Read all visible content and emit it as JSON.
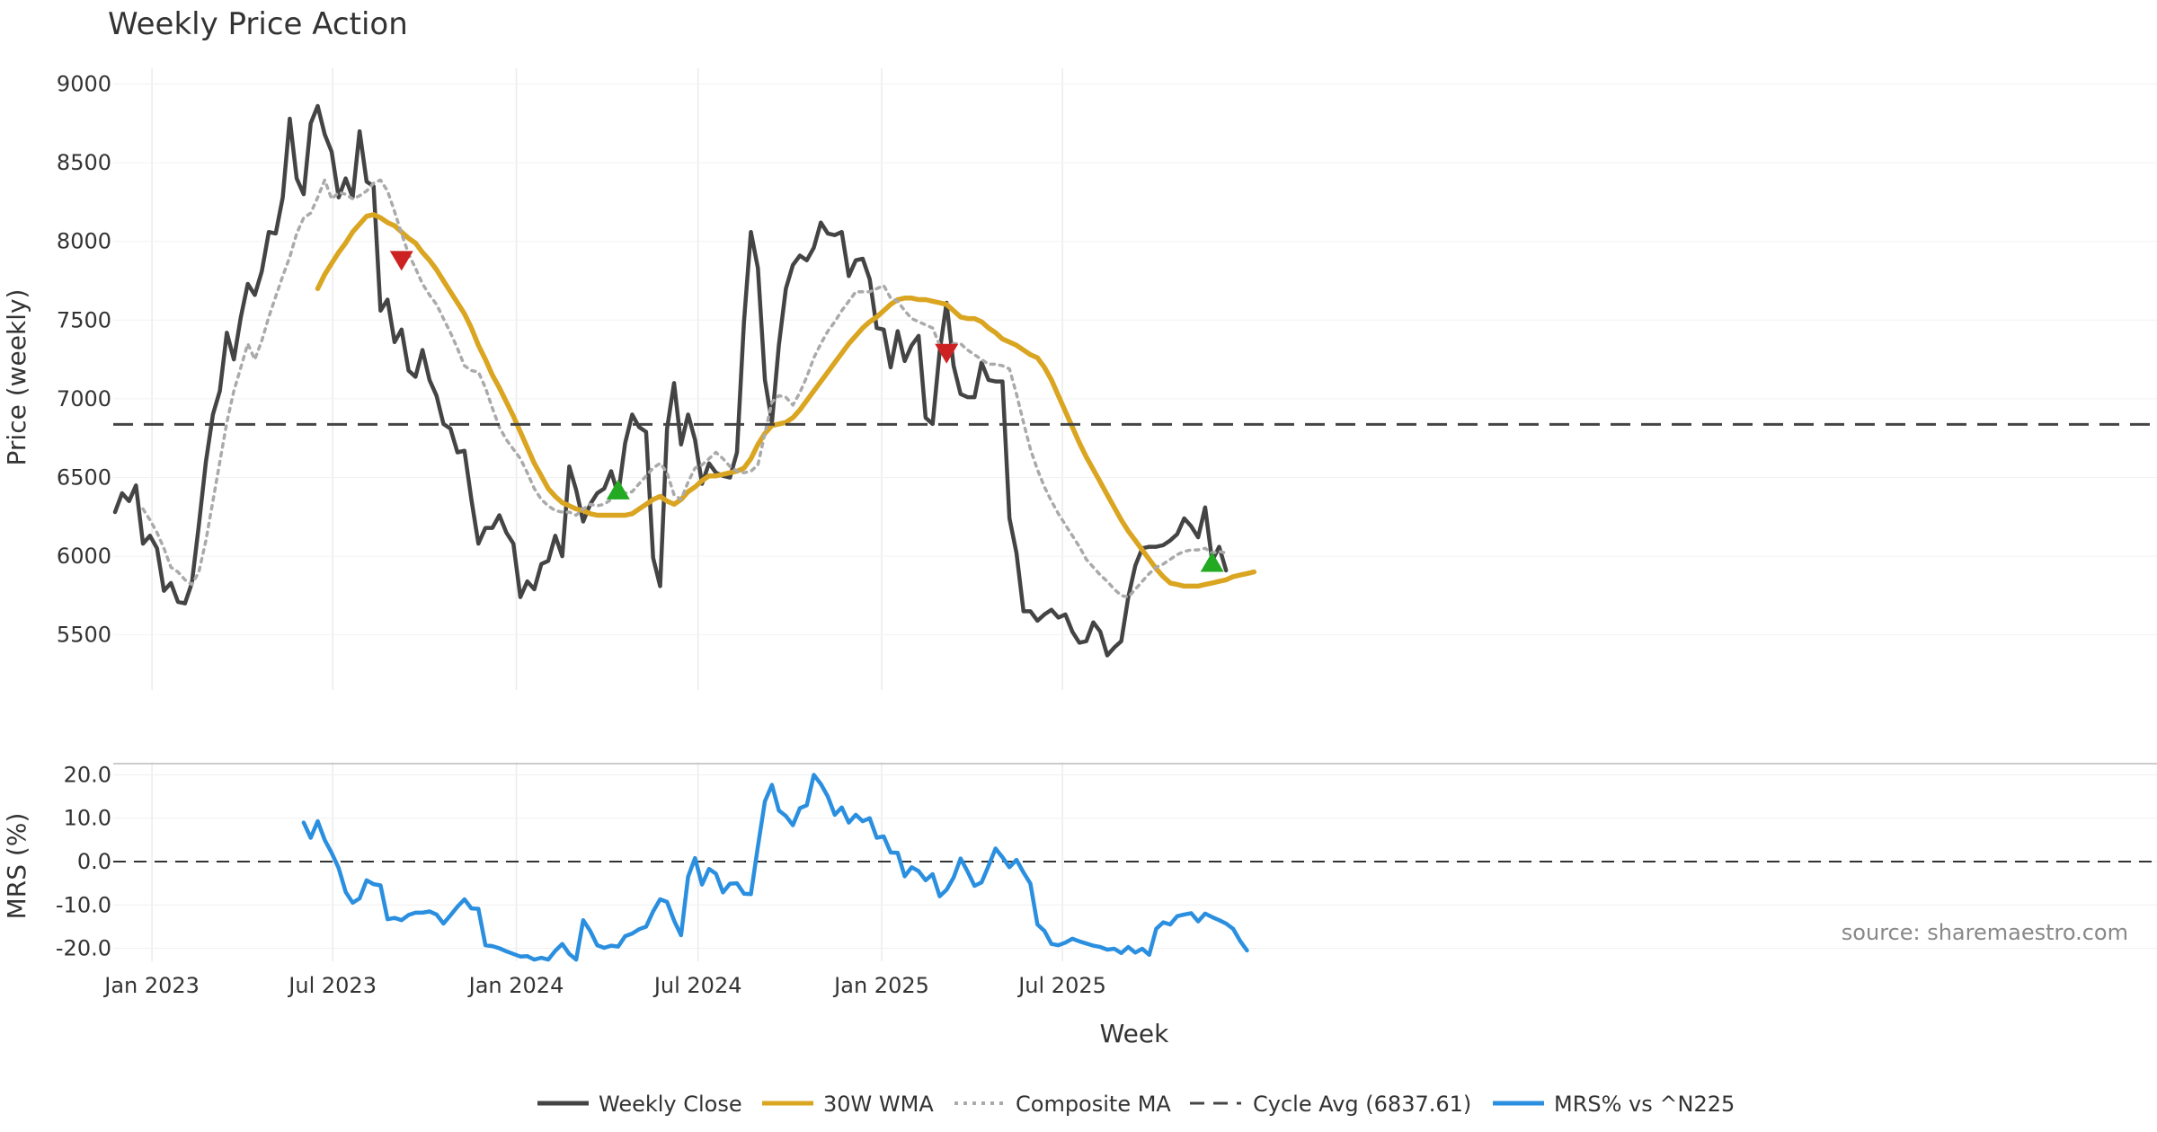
{
  "chart_data": {
    "type": "line",
    "title": "Weekly Price Action",
    "xlabel": "Week",
    "x_start": "2022-11-25",
    "x_interval": "weekly",
    "x_tick_labels": [
      "Jan 2023",
      "Jul 2023",
      "Jan 2024",
      "Jul 2024",
      "Jan 2025",
      "Jul 2025"
    ],
    "grid": true,
    "legend_position": "bottom-center",
    "source": "source: sharemaestro.com",
    "price_panel": {
      "ylabel": "Price (weekly)",
      "ylim": [
        5150,
        9100
      ],
      "y_ticks": [
        5500,
        6000,
        6500,
        7000,
        7500,
        8000,
        8500,
        9000
      ],
      "series": [
        {
          "name": "Weekly Close",
          "color": "#444444",
          "style": "solid",
          "values": [
            6280,
            6400,
            6350,
            6450,
            6080,
            6130,
            6050,
            5780,
            5830,
            5710,
            5700,
            5830,
            6200,
            6600,
            6900,
            7050,
            7420,
            7250,
            7520,
            7730,
            7660,
            7810,
            8060,
            8050,
            8280,
            8780,
            8400,
            8300,
            8750,
            8860,
            8680,
            8570,
            8280,
            8400,
            8280,
            8700,
            8380,
            8350,
            7560,
            7630,
            7360,
            7440,
            7180,
            7140,
            7310,
            7120,
            7020,
            6840,
            6810,
            6660,
            6670,
            6360,
            6080,
            6180,
            6180,
            6260,
            6150,
            6080,
            5740,
            5840,
            5790,
            5950,
            5970,
            6130,
            6000,
            6570,
            6420,
            6220,
            6330,
            6400,
            6430,
            6540,
            6390,
            6720,
            6900,
            6820,
            6790,
            5990,
            5810,
            6810,
            7100,
            6710,
            6900,
            6740,
            6460,
            6590,
            6530,
            6510,
            6500,
            6660,
            7490,
            8060,
            7830,
            7120,
            6850,
            7340,
            7700,
            7850,
            7910,
            7880,
            7960,
            8120,
            8050,
            8040,
            8060,
            7780,
            7880,
            7890,
            7760,
            7450,
            7440,
            7200,
            7430,
            7240,
            7340,
            7400,
            6880,
            6840,
            7300,
            7610,
            7210,
            7030,
            7010,
            7010,
            7230,
            7120,
            7110,
            7110,
            6240,
            6020,
            5650,
            5650,
            5590,
            5630,
            5660,
            5610,
            5630,
            5520,
            5450,
            5460,
            5580,
            5520,
            5370,
            5420,
            5460,
            5740,
            5940,
            6050,
            6060,
            6060,
            6070,
            6100,
            6140,
            6240,
            6190,
            6120,
            6310,
            5970,
            6060,
            5910
          ]
        },
        {
          "name": "30W WMA",
          "color": "#DAA520",
          "style": "solid",
          "start_index": 29,
          "values": [
            7700,
            7790,
            7860,
            7930,
            7990,
            8060,
            8110,
            8160,
            8170,
            8150,
            8120,
            8100,
            8060,
            8020,
            7990,
            7930,
            7880,
            7820,
            7750,
            7680,
            7610,
            7540,
            7450,
            7340,
            7250,
            7150,
            7070,
            6980,
            6890,
            6790,
            6690,
            6590,
            6510,
            6430,
            6380,
            6340,
            6320,
            6300,
            6290,
            6270,
            6260,
            6260,
            6260,
            6260,
            6260,
            6270,
            6300,
            6330,
            6360,
            6380,
            6350,
            6330,
            6360,
            6410,
            6440,
            6480,
            6510,
            6510,
            6520,
            6530,
            6540,
            6560,
            6620,
            6710,
            6780,
            6830,
            6840,
            6850,
            6880,
            6930,
            6990,
            7050,
            7110,
            7170,
            7230,
            7290,
            7350,
            7400,
            7450,
            7490,
            7520,
            7560,
            7600,
            7630,
            7640,
            7640,
            7630,
            7630,
            7620,
            7610,
            7600,
            7560,
            7520,
            7510,
            7510,
            7490,
            7450,
            7420,
            7380,
            7360,
            7340,
            7310,
            7280,
            7260,
            7200,
            7120,
            7020,
            6920,
            6820,
            6720,
            6630,
            6550,
            6470,
            6390,
            6310,
            6230,
            6160,
            6100,
            6040,
            5980,
            5920,
            5870,
            5830,
            5820,
            5810,
            5810,
            5810,
            5820,
            5830,
            5840,
            5850,
            5870,
            5880,
            5890,
            5900
          ]
        },
        {
          "name": "Composite MA",
          "color": "#AAAAAA",
          "style": "dotted",
          "start_index": 4,
          "values": [
            6300,
            6230,
            6150,
            6050,
            5930,
            5900,
            5850,
            5820,
            5900,
            6100,
            6350,
            6600,
            6850,
            7050,
            7200,
            7350,
            7250,
            7370,
            7520,
            7650,
            7780,
            7900,
            8050,
            8150,
            8180,
            8280,
            8390,
            8270,
            8310,
            8300,
            8270,
            8290,
            8320,
            8370,
            8390,
            8320,
            8190,
            8050,
            7920,
            7830,
            7730,
            7660,
            7600,
            7510,
            7420,
            7320,
            7210,
            7180,
            7170,
            7070,
            6940,
            6820,
            6740,
            6680,
            6620,
            6530,
            6430,
            6360,
            6320,
            6290,
            6280,
            6280,
            6260,
            6300,
            6330,
            6320,
            6330,
            6360,
            6380,
            6400,
            6410,
            6460,
            6510,
            6560,
            6590,
            6530,
            6390,
            6360,
            6470,
            6560,
            6580,
            6620,
            6660,
            6620,
            6570,
            6540,
            6530,
            6540,
            6580,
            6780,
            6980,
            7020,
            7010,
            6960,
            7040,
            7140,
            7260,
            7350,
            7430,
            7490,
            7560,
            7620,
            7680,
            7680,
            7680,
            7700,
            7720,
            7640,
            7620,
            7560,
            7510,
            7490,
            7470,
            7450,
            7340,
            7330,
            7350,
            7350,
            7310,
            7280,
            7250,
            7220,
            7220,
            7210,
            7190,
            7030,
            6850,
            6680,
            6550,
            6440,
            6350,
            6270,
            6200,
            6130,
            6060,
            5980,
            5930,
            5880,
            5840,
            5790,
            5750,
            5740,
            5790,
            5840,
            5890,
            5930,
            5950,
            5980,
            6010,
            6030,
            6040,
            6040,
            6050,
            6020,
            6030,
            6020
          ]
        },
        {
          "name": "Cycle Avg (6837.61)",
          "color": "#444444",
          "style": "dashed",
          "constant": 6837.61
        }
      ],
      "markers": [
        {
          "type": "sell",
          "shape": "down-triangle",
          "color": "#CC2222",
          "index": 41,
          "value": 7880
        },
        {
          "type": "buy",
          "shape": "up-triangle",
          "color": "#22AA22",
          "index": 72,
          "value": 6420
        },
        {
          "type": "sell",
          "shape": "down-triangle",
          "color": "#CC2222",
          "index": 119,
          "value": 7290
        },
        {
          "type": "buy",
          "shape": "up-triangle",
          "color": "#22AA22",
          "index": 157,
          "value": 5960
        }
      ]
    },
    "mrs_panel": {
      "ylabel": "MRS (%)",
      "ylim": [
        -23,
        23
      ],
      "y_ticks": [
        20.0,
        10.0,
        0.0,
        -10.0,
        -20.0
      ],
      "zero_line": {
        "value": 0,
        "color": "#333333",
        "style": "dashed"
      },
      "series": [
        {
          "name": "MRS% vs ^N225",
          "color": "#2B8FE0",
          "style": "solid",
          "start_index": 27,
          "values": [
            9,
            5.5,
            9.3,
            5,
            2,
            -1.5,
            -7,
            -9.5,
            -8.5,
            -4.3,
            -5.2,
            -5.5,
            -13.3,
            -13,
            -13.5,
            -12.3,
            -11.8,
            -11.8,
            -11.5,
            -12.2,
            -14.3,
            -12.4,
            -10.4,
            -8.7,
            -10.8,
            -10.9,
            -19.3,
            -19.5,
            -20,
            -20.7,
            -21.3,
            -21.9,
            -21.8,
            -22.6,
            -22.2,
            -22.6,
            -20.6,
            -19,
            -21.3,
            -22.6,
            -13.5,
            -16,
            -19.3,
            -19.9,
            -19.4,
            -19.6,
            -17.2,
            -16.6,
            -15.6,
            -15,
            -11.5,
            -8.7,
            -9.3,
            -13.6,
            -17,
            -3.5,
            0.8,
            -5.3,
            -1.7,
            -2.8,
            -7.1,
            -5.1,
            -5,
            -7.4,
            -7.5,
            3.5,
            13.9,
            17.7,
            11.8,
            10.5,
            8.4,
            12.3,
            13,
            20,
            17.9,
            15,
            10.8,
            12.5,
            9,
            10.8,
            9.3,
            10,
            5.5,
            5.8,
            2.1,
            2,
            -3.4,
            -1.3,
            -2.2,
            -4.3,
            -2.9,
            -8,
            -6.5,
            -3.7,
            0.7,
            -2.3,
            -5.6,
            -4.8,
            -1,
            3,
            1,
            -1.3,
            0.4,
            -2.5,
            -5.1,
            -14.5,
            -16,
            -19,
            -19.3,
            -18.7,
            -17.8,
            -18.4,
            -18.9,
            -19.4,
            -19.7,
            -20.3,
            -20.1,
            -21.1,
            -19.7,
            -21,
            -20.1,
            -21.5,
            -15.5,
            -14,
            -14.5,
            -12.6,
            -12.2,
            -11.9,
            -13.8,
            -12,
            -12.8,
            -13.5,
            -14.3,
            -15.5,
            -18.3,
            -20.5
          ]
        }
      ]
    },
    "legend": [
      "Weekly Close",
      "30W WMA",
      "Composite MA",
      "Cycle Avg (6837.61)",
      "MRS% vs ^N225"
    ]
  }
}
